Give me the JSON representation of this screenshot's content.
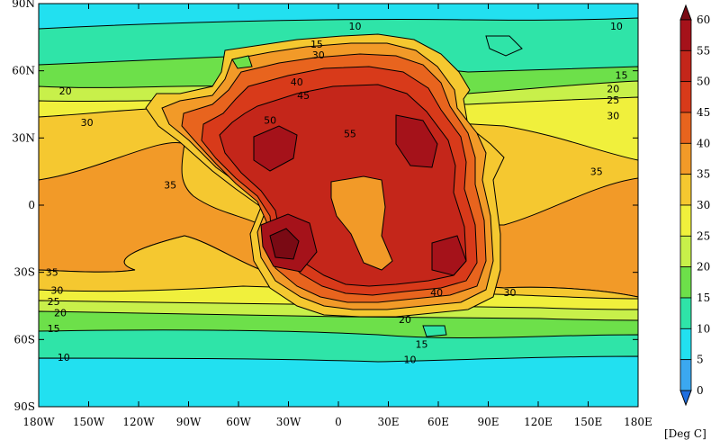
{
  "map": {
    "units_label": "[Deg C]",
    "lon_ticks": [
      "180W",
      "150W",
      "120W",
      "90W",
      "60W",
      "30W",
      "0",
      "30E",
      "60E",
      "90E",
      "120E",
      "150E",
      "180E"
    ],
    "lat_ticks": [
      "90N",
      "60N",
      "30N",
      "0",
      "30S",
      "60S",
      "90S"
    ],
    "colorbar": {
      "levels": [
        0,
        5,
        10,
        15,
        20,
        25,
        30,
        35,
        40,
        45,
        50,
        55,
        60
      ],
      "colors": [
        "#1f6fe0",
        "#3ba8f0",
        "#22e0f0",
        "#2fe4a8",
        "#6de04a",
        "#c8f04a",
        "#f0f03c",
        "#f5c830",
        "#f29a28",
        "#e8641e",
        "#d83a1a",
        "#c4261a",
        "#a5121a",
        "#7a0a14"
      ],
      "color_names": [
        "below-0",
        "0-5",
        "5-10",
        "10-15",
        "15-20",
        "20-25",
        "25-30",
        "30-35",
        "35-40",
        "40-45",
        "45-50",
        "50-55",
        "55-60",
        "above-60"
      ]
    },
    "contour_labels": [
      {
        "text": "10",
        "lon": 10,
        "lat": 80
      },
      {
        "text": "10",
        "lon": 167,
        "lat": 80
      },
      {
        "text": "15",
        "lon": -13,
        "lat": 72
      },
      {
        "text": "30",
        "lon": -12,
        "lat": 67
      },
      {
        "text": "15",
        "lon": 170,
        "lat": 58
      },
      {
        "text": "20",
        "lon": -164,
        "lat": 51
      },
      {
        "text": "20",
        "lon": 165,
        "lat": 52
      },
      {
        "text": "25",
        "lon": 165,
        "lat": 47
      },
      {
        "text": "30",
        "lon": -151,
        "lat": 37
      },
      {
        "text": "30",
        "lon": 165,
        "lat": 40
      },
      {
        "text": "45",
        "lon": -21,
        "lat": 49
      },
      {
        "text": "40",
        "lon": -25,
        "lat": 55
      },
      {
        "text": "50",
        "lon": -41,
        "lat": 38
      },
      {
        "text": "55",
        "lon": 7,
        "lat": 32
      },
      {
        "text": "35",
        "lon": -101,
        "lat": 9
      },
      {
        "text": "35",
        "lon": 155,
        "lat": 15
      },
      {
        "text": "35",
        "lon": -172,
        "lat": -30
      },
      {
        "text": "30",
        "lon": -169,
        "lat": -38
      },
      {
        "text": "25",
        "lon": -171,
        "lat": -43
      },
      {
        "text": "20",
        "lon": -167,
        "lat": -48
      },
      {
        "text": "15",
        "lon": -171,
        "lat": -55
      },
      {
        "text": "10",
        "lon": -165,
        "lat": -68
      },
      {
        "text": "30",
        "lon": 103,
        "lat": -39
      },
      {
        "text": "40",
        "lon": 59,
        "lat": -39
      },
      {
        "text": "20",
        "lon": 40,
        "lat": -51
      },
      {
        "text": "15",
        "lon": 50,
        "lat": -62
      },
      {
        "text": "10",
        "lon": 43,
        "lat": -69
      }
    ]
  }
}
